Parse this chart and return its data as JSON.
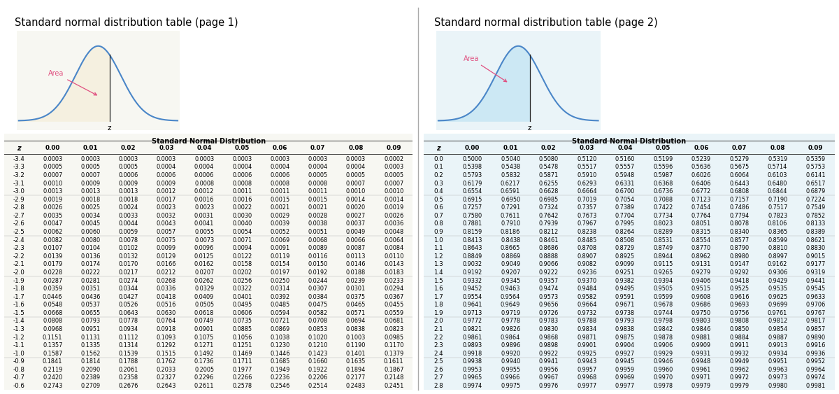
{
  "title1": "Standard normal distribution table (page 1)",
  "title2": "Standard normal distribution table (page 2)",
  "table_title": "Standard Normal Distribution",
  "col_headers": [
    "0.00",
    "0.01",
    "0.02",
    "0.03",
    "0.04",
    "0.05",
    "0.06",
    "0.07",
    "0.08",
    "0.09"
  ],
  "page1_rows": [
    [
      "-3.4",
      "0.0003",
      "0.0003",
      "0.0003",
      "0.0003",
      "0.0003",
      "0.0003",
      "0.0003",
      "0.0003",
      "0.0003",
      "0.0002"
    ],
    [
      "-3.3",
      "0.0005",
      "0.0005",
      "0.0005",
      "0.0004",
      "0.0004",
      "0.0004",
      "0.0004",
      "0.0004",
      "0.0004",
      "0.0003"
    ],
    [
      "-3.2",
      "0.0007",
      "0.0007",
      "0.0006",
      "0.0006",
      "0.0006",
      "0.0006",
      "0.0006",
      "0.0005",
      "0.0005",
      "0.0005"
    ],
    [
      "-3.1",
      "0.0010",
      "0.0009",
      "0.0009",
      "0.0009",
      "0.0008",
      "0.0008",
      "0.0008",
      "0.0008",
      "0.0007",
      "0.0007"
    ],
    [
      "-3.0",
      "0.0013",
      "0.0013",
      "0.0013",
      "0.0012",
      "0.0012",
      "0.0011",
      "0.0011",
      "0.0011",
      "0.0010",
      "0.0010"
    ],
    [
      "-2.9",
      "0.0019",
      "0.0018",
      "0.0018",
      "0.0017",
      "0.0016",
      "0.0016",
      "0.0015",
      "0.0015",
      "0.0014",
      "0.0014"
    ],
    [
      "-2.8",
      "0.0026",
      "0.0025",
      "0.0024",
      "0.0023",
      "0.0023",
      "0.0022",
      "0.0021",
      "0.0021",
      "0.0020",
      "0.0019"
    ],
    [
      "-2.7",
      "0.0035",
      "0.0034",
      "0.0033",
      "0.0032",
      "0.0031",
      "0.0030",
      "0.0029",
      "0.0028",
      "0.0027",
      "0.0026"
    ],
    [
      "-2.6",
      "0.0047",
      "0.0045",
      "0.0044",
      "0.0043",
      "0.0041",
      "0.0040",
      "0.0039",
      "0.0038",
      "0.0037",
      "0.0036"
    ],
    [
      "-2.5",
      "0.0062",
      "0.0060",
      "0.0059",
      "0.0057",
      "0.0055",
      "0.0054",
      "0.0052",
      "0.0051",
      "0.0049",
      "0.0048"
    ],
    [
      "-2.4",
      "0.0082",
      "0.0080",
      "0.0078",
      "0.0075",
      "0.0073",
      "0.0071",
      "0.0069",
      "0.0068",
      "0.0066",
      "0.0064"
    ],
    [
      "-2.3",
      "0.0107",
      "0.0104",
      "0.0102",
      "0.0099",
      "0.0096",
      "0.0094",
      "0.0091",
      "0.0089",
      "0.0087",
      "0.0084"
    ],
    [
      "-2.2",
      "0.0139",
      "0.0136",
      "0.0132",
      "0.0129",
      "0.0125",
      "0.0122",
      "0.0119",
      "0.0116",
      "0.0113",
      "0.0110"
    ],
    [
      "-2.1",
      "0.0179",
      "0.0174",
      "0.0170",
      "0.0166",
      "0.0162",
      "0.0158",
      "0.0154",
      "0.0150",
      "0.0146",
      "0.0143"
    ],
    [
      "-2.0",
      "0.0228",
      "0.0222",
      "0.0217",
      "0.0212",
      "0.0207",
      "0.0202",
      "0.0197",
      "0.0192",
      "0.0188",
      "0.0183"
    ],
    [
      "-1.9",
      "0.0287",
      "0.0281",
      "0.0274",
      "0.0268",
      "0.0262",
      "0.0256",
      "0.0250",
      "0.0244",
      "0.0239",
      "0.0233"
    ],
    [
      "-1.8",
      "0.0359",
      "0.0351",
      "0.0344",
      "0.0336",
      "0.0329",
      "0.0322",
      "0.0314",
      "0.0307",
      "0.0301",
      "0.0294"
    ],
    [
      "-1.7",
      "0.0446",
      "0.0436",
      "0.0427",
      "0.0418",
      "0.0409",
      "0.0401",
      "0.0392",
      "0.0384",
      "0.0375",
      "0.0367"
    ],
    [
      "-1.6",
      "0.0548",
      "0.0537",
      "0.0526",
      "0.0516",
      "0.0505",
      "0.0495",
      "0.0485",
      "0.0475",
      "0.0465",
      "0.0455"
    ],
    [
      "-1.5",
      "0.0668",
      "0.0655",
      "0.0643",
      "0.0630",
      "0.0618",
      "0.0606",
      "0.0594",
      "0.0582",
      "0.0571",
      "0.0559"
    ],
    [
      "-1.4",
      "0.0808",
      "0.0793",
      "0.0778",
      "0.0764",
      "0.0749",
      "0.0735",
      "0.0721",
      "0.0708",
      "0.0694",
      "0.0681"
    ],
    [
      "-1.3",
      "0.0968",
      "0.0951",
      "0.0934",
      "0.0918",
      "0.0901",
      "0.0885",
      "0.0869",
      "0.0853",
      "0.0838",
      "0.0823"
    ],
    [
      "-1.2",
      "0.1151",
      "0.1131",
      "0.1112",
      "0.1093",
      "0.1075",
      "0.1056",
      "0.1038",
      "0.1020",
      "0.1003",
      "0.0985"
    ],
    [
      "-1.1",
      "0.1357",
      "0.1335",
      "0.1314",
      "0.1292",
      "0.1271",
      "0.1251",
      "0.1230",
      "0.1210",
      "0.1190",
      "0.1170"
    ],
    [
      "-1.0",
      "0.1587",
      "0.1562",
      "0.1539",
      "0.1515",
      "0.1492",
      "0.1469",
      "0.1446",
      "0.1423",
      "0.1401",
      "0.1379"
    ],
    [
      "-0.9",
      "0.1841",
      "0.1814",
      "0.1788",
      "0.1762",
      "0.1736",
      "0.1711",
      "0.1685",
      "0.1660",
      "0.1635",
      "0.1611"
    ],
    [
      "-0.8",
      "0.2119",
      "0.2090",
      "0.2061",
      "0.2033",
      "0.2005",
      "0.1977",
      "0.1949",
      "0.1922",
      "0.1894",
      "0.1867"
    ],
    [
      "-0.7",
      "0.2420",
      "0.2389",
      "0.2358",
      "0.2327",
      "0.2296",
      "0.2266",
      "0.2236",
      "0.2206",
      "0.2177",
      "0.2148"
    ],
    [
      "-0.6",
      "0.2743",
      "0.2709",
      "0.2676",
      "0.2643",
      "0.2611",
      "0.2578",
      "0.2546",
      "0.2514",
      "0.2483",
      "0.2451"
    ]
  ],
  "page2_rows": [
    [
      "0.0",
      "0.5000",
      "0.5040",
      "0.5080",
      "0.5120",
      "0.5160",
      "0.5199",
      "0.5239",
      "0.5279",
      "0.5319",
      "0.5359"
    ],
    [
      "0.1",
      "0.5398",
      "0.5438",
      "0.5478",
      "0.5517",
      "0.5557",
      "0.5596",
      "0.5636",
      "0.5675",
      "0.5714",
      "0.5753"
    ],
    [
      "0.2",
      "0.5793",
      "0.5832",
      "0.5871",
      "0.5910",
      "0.5948",
      "0.5987",
      "0.6026",
      "0.6064",
      "0.6103",
      "0.6141"
    ],
    [
      "0.3",
      "0.6179",
      "0.6217",
      "0.6255",
      "0.6293",
      "0.6331",
      "0.6368",
      "0.6406",
      "0.6443",
      "0.6480",
      "0.6517"
    ],
    [
      "0.4",
      "0.6554",
      "0.6591",
      "0.6628",
      "0.6664",
      "0.6700",
      "0.6736",
      "0.6772",
      "0.6808",
      "0.6844",
      "0.6879"
    ],
    [
      "0.5",
      "0.6915",
      "0.6950",
      "0.6985",
      "0.7019",
      "0.7054",
      "0.7088",
      "0.7123",
      "0.7157",
      "0.7190",
      "0.7224"
    ],
    [
      "0.6",
      "0.7257",
      "0.7291",
      "0.7324",
      "0.7357",
      "0.7389",
      "0.7422",
      "0.7454",
      "0.7486",
      "0.7517",
      "0.7549"
    ],
    [
      "0.7",
      "0.7580",
      "0.7611",
      "0.7642",
      "0.7673",
      "0.7704",
      "0.7734",
      "0.7764",
      "0.7794",
      "0.7823",
      "0.7852"
    ],
    [
      "0.8",
      "0.7881",
      "0.7910",
      "0.7939",
      "0.7967",
      "0.7995",
      "0.8023",
      "0.8051",
      "0.8078",
      "0.8106",
      "0.8133"
    ],
    [
      "0.9",
      "0.8159",
      "0.8186",
      "0.8212",
      "0.8238",
      "0.8264",
      "0.8289",
      "0.8315",
      "0.8340",
      "0.8365",
      "0.8389"
    ],
    [
      "1.0",
      "0.8413",
      "0.8438",
      "0.8461",
      "0.8485",
      "0.8508",
      "0.8531",
      "0.8554",
      "0.8577",
      "0.8599",
      "0.8621"
    ],
    [
      "1.1",
      "0.8643",
      "0.8665",
      "0.8686",
      "0.8708",
      "0.8729",
      "0.8749",
      "0.8770",
      "0.8790",
      "0.8810",
      "0.8830"
    ],
    [
      "1.2",
      "0.8849",
      "0.8869",
      "0.8888",
      "0.8907",
      "0.8925",
      "0.8944",
      "0.8962",
      "0.8980",
      "0.8997",
      "0.9015"
    ],
    [
      "1.3",
      "0.9032",
      "0.9049",
      "0.9066",
      "0.9082",
      "0.9099",
      "0.9115",
      "0.9131",
      "0.9147",
      "0.9162",
      "0.9177"
    ],
    [
      "1.4",
      "0.9192",
      "0.9207",
      "0.9222",
      "0.9236",
      "0.9251",
      "0.9265",
      "0.9279",
      "0.9292",
      "0.9306",
      "0.9319"
    ],
    [
      "1.5",
      "0.9332",
      "0.9345",
      "0.9357",
      "0.9370",
      "0.9382",
      "0.9394",
      "0.9406",
      "0.9418",
      "0.9429",
      "0.9441"
    ],
    [
      "1.6",
      "0.9452",
      "0.9463",
      "0.9474",
      "0.9484",
      "0.9495",
      "0.9505",
      "0.9515",
      "0.9525",
      "0.9535",
      "0.9545"
    ],
    [
      "1.7",
      "0.9554",
      "0.9564",
      "0.9573",
      "0.9582",
      "0.9591",
      "0.9599",
      "0.9608",
      "0.9616",
      "0.9625",
      "0.9633"
    ],
    [
      "1.8",
      "0.9641",
      "0.9649",
      "0.9656",
      "0.9664",
      "0.9671",
      "0.9678",
      "0.9686",
      "0.9693",
      "0.9699",
      "0.9706"
    ],
    [
      "1.9",
      "0.9713",
      "0.9719",
      "0.9726",
      "0.9732",
      "0.9738",
      "0.9744",
      "0.9750",
      "0.9756",
      "0.9761",
      "0.9767"
    ],
    [
      "2.0",
      "0.9772",
      "0.9778",
      "0.9783",
      "0.9788",
      "0.9793",
      "0.9798",
      "0.9803",
      "0.9808",
      "0.9812",
      "0.9817"
    ],
    [
      "2.1",
      "0.9821",
      "0.9826",
      "0.9830",
      "0.9834",
      "0.9838",
      "0.9842",
      "0.9846",
      "0.9850",
      "0.9854",
      "0.9857"
    ],
    [
      "2.2",
      "0.9861",
      "0.9864",
      "0.9868",
      "0.9871",
      "0.9875",
      "0.9878",
      "0.9881",
      "0.9884",
      "0.9887",
      "0.9890"
    ],
    [
      "2.3",
      "0.9893",
      "0.9896",
      "0.9898",
      "0.9901",
      "0.9904",
      "0.9906",
      "0.9909",
      "0.9911",
      "0.9913",
      "0.9916"
    ],
    [
      "2.4",
      "0.9918",
      "0.9920",
      "0.9922",
      "0.9925",
      "0.9927",
      "0.9929",
      "0.9931",
      "0.9932",
      "0.9934",
      "0.9936"
    ],
    [
      "2.5",
      "0.9938",
      "0.9940",
      "0.9941",
      "0.9943",
      "0.9945",
      "0.9946",
      "0.9948",
      "0.9949",
      "0.9951",
      "0.9952"
    ],
    [
      "2.6",
      "0.9953",
      "0.9955",
      "0.9956",
      "0.9957",
      "0.9959",
      "0.9960",
      "0.9961",
      "0.9962",
      "0.9963",
      "0.9964"
    ],
    [
      "2.7",
      "0.9965",
      "0.9966",
      "0.9967",
      "0.9968",
      "0.9969",
      "0.9970",
      "0.9971",
      "0.9972",
      "0.9973",
      "0.9974"
    ],
    [
      "2.8",
      "0.9974",
      "0.9975",
      "0.9976",
      "0.9977",
      "0.9977",
      "0.9978",
      "0.9979",
      "0.9979",
      "0.9980",
      "0.9981"
    ]
  ],
  "bg_color": "#ffffff",
  "panel_bg": "#f7f7f2",
  "panel_bg2": "#eaf4f8",
  "curve_color": "#4a86c8",
  "fill_color1": "#f5f0e0",
  "fill_color2": "#cce8f4",
  "arrow_color": "#e05080",
  "header_line_color": "#333333",
  "text_color": "#000000",
  "sep_line_color": "#bbbbbb"
}
